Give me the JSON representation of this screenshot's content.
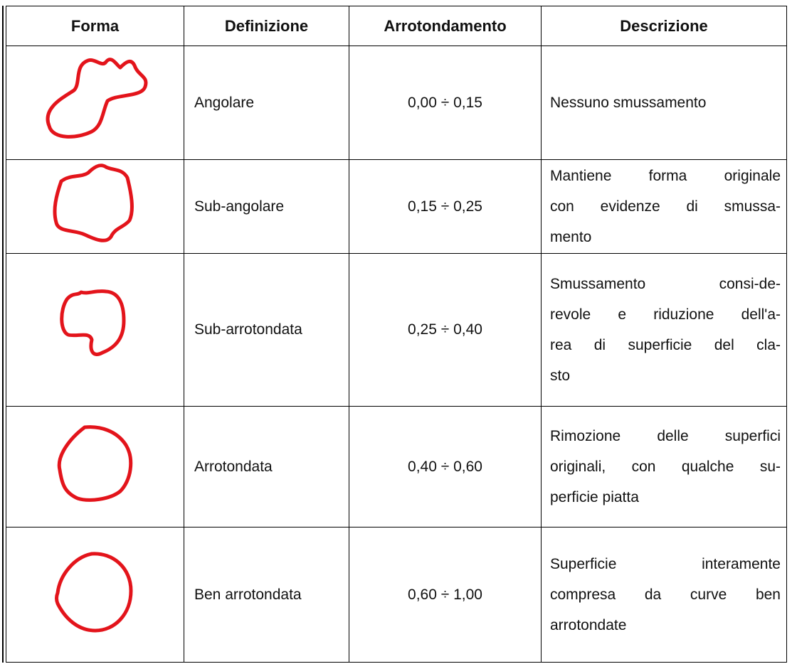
{
  "table": {
    "columns": [
      "Forma",
      "Definizione",
      "Arrotondamento",
      "Descrizione"
    ],
    "rows": [
      {
        "definition": "Angolare",
        "roundness": "0,00 ÷ 0,15",
        "description": [
          "Nessuno smussamento"
        ]
      },
      {
        "definition": "Sub-angolare",
        "roundness": "0,15 ÷ 0,25",
        "description": [
          "Mantiene forma originale",
          "con evidenze di smussa-",
          "mento"
        ]
      },
      {
        "definition": "Sub-arrotondata",
        "roundness": "0,25 ÷ 0,40",
        "description": [
          "Smussamento consi-de-",
          "revole e riduzione dell'a-",
          "rea di superficie del cla-",
          "sto"
        ]
      },
      {
        "definition": "Arrotondata",
        "roundness": "0,40 ÷ 0,60",
        "description": [
          "Rimozione delle superfici",
          "originali, con qualche su-",
          "perficie piatta"
        ]
      },
      {
        "definition": "Ben arrotondata",
        "roundness": "0,60 ÷ 1,00",
        "description": [
          "Superficie interamente",
          "compresa da curve ben",
          "arrotondate"
        ]
      }
    ]
  }
}
